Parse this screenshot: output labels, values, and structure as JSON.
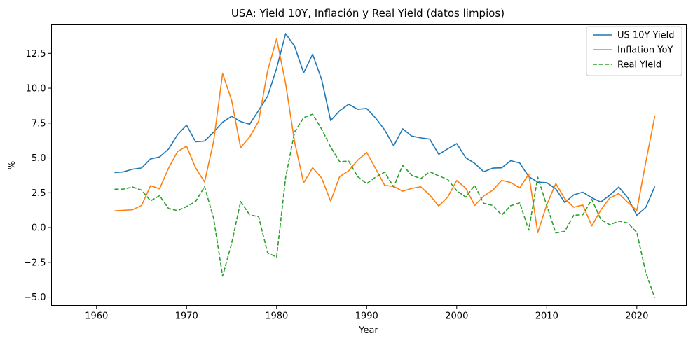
{
  "chart_data": {
    "type": "line",
    "title": "USA: Yield 10Y, Inflación y Real Yield (datos limpios)",
    "xlabel": "Year",
    "ylabel": "%",
    "xlim": [
      1955,
      2025.5
    ],
    "ylim": [
      -5.6,
      14.6
    ],
    "xticks": [
      1960,
      1970,
      1980,
      1990,
      2000,
      2010,
      2020
    ],
    "yticks": [
      -5.0,
      -2.5,
      0.0,
      2.5,
      5.0,
      7.5,
      10.0,
      12.5
    ],
    "ytick_labels": [
      "−5.0",
      "−2.5",
      "0.0",
      "2.5",
      "5.0",
      "7.5",
      "10.0",
      "12.5"
    ],
    "grid": false,
    "legend_position": "top-right",
    "x": [
      1962,
      1963,
      1964,
      1965,
      1966,
      1967,
      1968,
      1969,
      1970,
      1971,
      1972,
      1973,
      1974,
      1975,
      1976,
      1977,
      1978,
      1979,
      1980,
      1981,
      1982,
      1983,
      1984,
      1985,
      1986,
      1987,
      1988,
      1989,
      1990,
      1991,
      1992,
      1993,
      1994,
      1995,
      1996,
      1997,
      1998,
      1999,
      2000,
      2001,
      2002,
      2003,
      2004,
      2005,
      2006,
      2007,
      2008,
      2009,
      2010,
      2011,
      2012,
      2013,
      2014,
      2015,
      2016,
      2017,
      2018,
      2019,
      2020,
      2021,
      2022
    ],
    "series": [
      {
        "name": "US 10Y Yield",
        "color": "#1f77b4",
        "style": "solid",
        "values": [
          3.95,
          4.0,
          4.19,
          4.28,
          4.93,
          5.07,
          5.64,
          6.67,
          7.35,
          6.16,
          6.21,
          6.85,
          7.56,
          7.99,
          7.61,
          7.42,
          8.41,
          9.43,
          11.43,
          13.92,
          13.0,
          11.1,
          12.44,
          10.62,
          7.68,
          8.39,
          8.85,
          8.49,
          8.55,
          7.86,
          7.01,
          5.87,
          7.09,
          6.57,
          6.44,
          6.35,
          5.26,
          5.65,
          6.03,
          5.02,
          4.61,
          4.01,
          4.27,
          4.29,
          4.8,
          4.63,
          3.66,
          3.26,
          3.22,
          2.78,
          1.8,
          2.35,
          2.54,
          2.14,
          1.84,
          2.33,
          2.91,
          2.14,
          0.89,
          1.45,
          2.95
        ]
      },
      {
        "name": "Inflation YoY",
        "color": "#ff7f0e",
        "style": "solid",
        "values": [
          1.2,
          1.24,
          1.28,
          1.59,
          3.01,
          2.78,
          4.27,
          5.46,
          5.84,
          4.29,
          3.27,
          6.18,
          11.05,
          9.14,
          5.74,
          6.5,
          7.63,
          11.25,
          13.55,
          10.33,
          6.13,
          3.21,
          4.3,
          3.55,
          1.9,
          3.66,
          4.08,
          4.83,
          5.4,
          4.23,
          3.03,
          2.95,
          2.61,
          2.81,
          2.93,
          2.34,
          1.55,
          2.19,
          3.38,
          2.83,
          1.59,
          2.27,
          2.68,
          3.39,
          3.23,
          2.85,
          3.84,
          -0.36,
          1.64,
          3.16,
          2.07,
          1.46,
          1.62,
          0.12,
          1.26,
          2.13,
          2.44,
          1.81,
          1.23,
          4.7,
          8.0
        ]
      },
      {
        "name": "Real Yield",
        "color": "#2ca02c",
        "style": "dashed",
        "values": [
          2.75,
          2.76,
          2.91,
          2.69,
          1.92,
          2.29,
          1.37,
          1.21,
          1.51,
          1.87,
          2.94,
          0.67,
          -3.49,
          -1.15,
          1.87,
          0.92,
          0.78,
          -1.82,
          -2.12,
          3.59,
          6.87,
          7.89,
          8.14,
          7.07,
          5.78,
          4.73,
          4.77,
          3.66,
          3.15,
          3.63,
          3.98,
          2.92,
          4.48,
          3.76,
          3.51,
          4.01,
          3.71,
          3.46,
          2.65,
          2.19,
          3.02,
          1.74,
          1.59,
          0.9,
          1.57,
          1.78,
          -0.18,
          3.62,
          1.58,
          -0.38,
          -0.27,
          0.89,
          0.92,
          2.02,
          0.58,
          0.2,
          0.47,
          0.33,
          -0.34,
          -3.25,
          -5.05
        ]
      }
    ]
  }
}
